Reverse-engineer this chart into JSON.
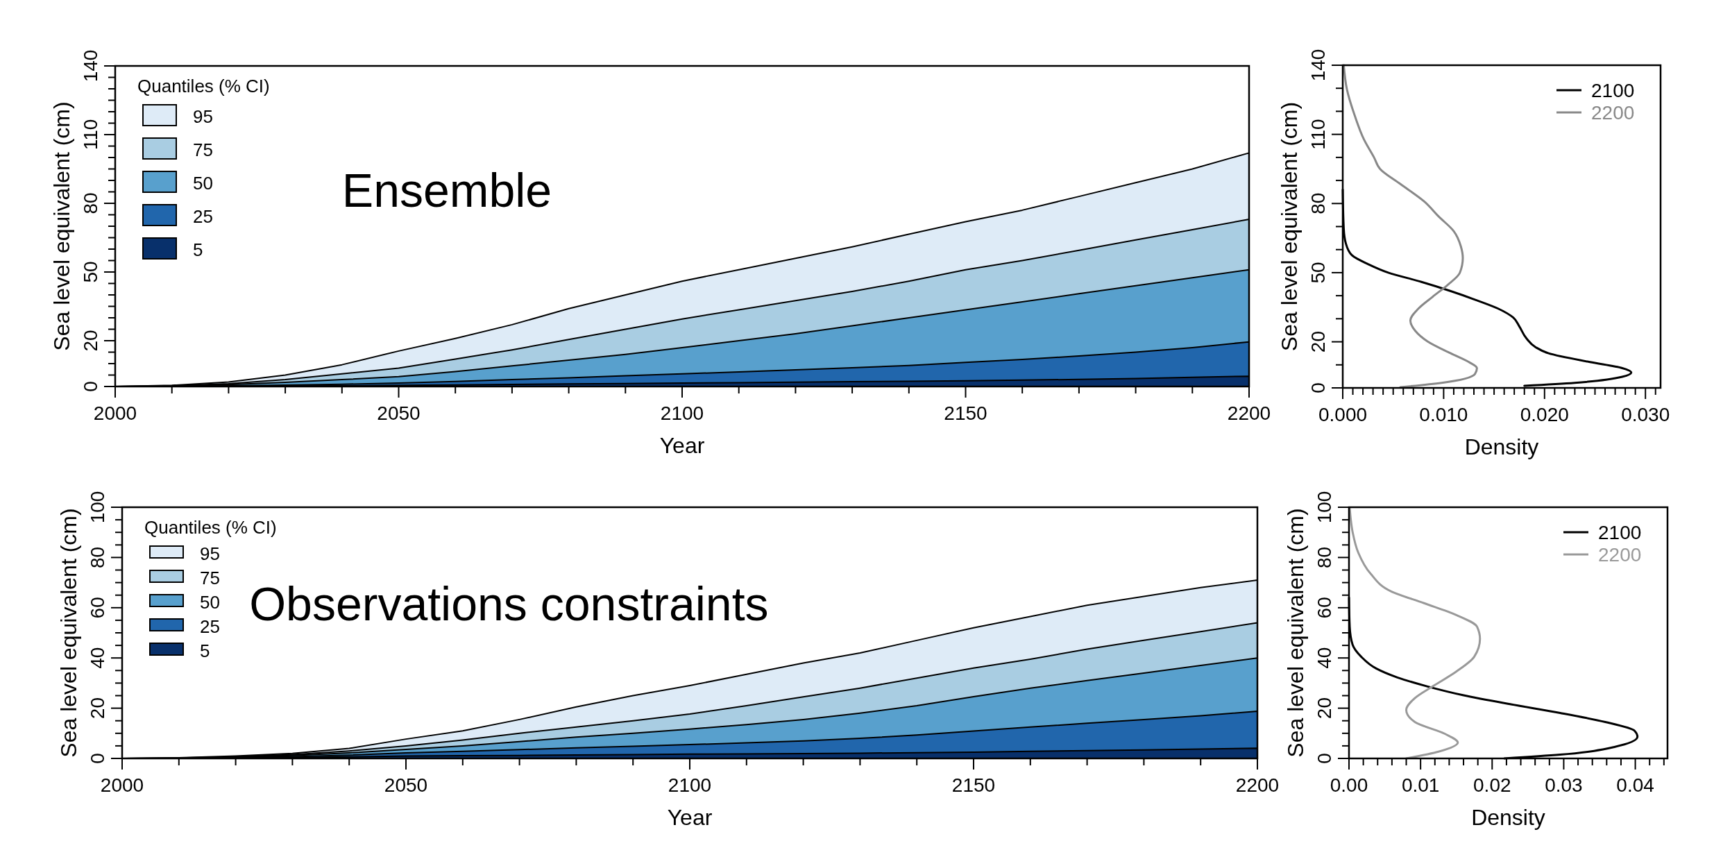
{
  "chart_data": [
    {
      "type": "area",
      "xlabel": "Year",
      "ylabel": "Sea level equivalent (cm)",
      "legend_title": "Quantiles (% CI)",
      "legend": "top left",
      "annotations": [
        "Ensemble"
      ],
      "x": [
        2000,
        2010,
        2020,
        2030,
        2040,
        2050,
        2060,
        2070,
        2080,
        2090,
        2100,
        2110,
        2120,
        2130,
        2140,
        2150,
        2160,
        2170,
        2180,
        2190,
        2200
      ],
      "xlim": [
        2000,
        2200
      ],
      "xticks": [
        2000,
        {
          "value": 2010,
          "label": null
        },
        {
          "value": 2020,
          "label": null
        },
        {
          "value": 2030,
          "label": null
        },
        {
          "value": 2040,
          "label": null
        },
        2050,
        {
          "value": 2060,
          "label": null
        },
        {
          "value": 2070,
          "label": null
        },
        {
          "value": 2080,
          "label": null
        },
        {
          "value": 2090,
          "label": null
        },
        2100,
        {
          "value": 2110,
          "label": null
        },
        {
          "value": 2120,
          "label": null
        },
        {
          "value": 2130,
          "label": null
        },
        {
          "value": 2140,
          "label": null
        },
        2150,
        {
          "value": 2160,
          "label": null
        },
        {
          "value": 2170,
          "label": null
        },
        {
          "value": 2180,
          "label": null
        },
        {
          "value": 2190,
          "label": null
        },
        2200
      ],
      "ylim": [
        0,
        140
      ],
      "yticks": [
        0,
        {
          "value": 5,
          "label": null
        },
        {
          "value": 10,
          "label": null
        },
        {
          "value": 15,
          "label": null
        },
        20,
        {
          "value": 25,
          "label": null
        },
        {
          "value": 30,
          "label": null
        },
        {
          "value": 35,
          "label": null
        },
        {
          "value": 40,
          "label": null
        },
        {
          "value": 45,
          "label": null
        },
        50,
        {
          "value": 55,
          "label": null
        },
        {
          "value": 60,
          "label": null
        },
        {
          "value": 65,
          "label": null
        },
        {
          "value": 70,
          "label": null
        },
        {
          "value": 75,
          "label": null
        },
        80,
        {
          "value": 85,
          "label": null
        },
        {
          "value": 90,
          "label": null
        },
        {
          "value": 95,
          "label": null
        },
        {
          "value": 100,
          "label": null
        },
        {
          "value": 105,
          "label": null
        },
        110,
        {
          "value": 115,
          "label": null
        },
        {
          "value": 120,
          "label": null
        },
        {
          "value": 125,
          "label": null
        },
        {
          "value": 130,
          "label": null
        },
        {
          "value": 135,
          "label": null
        },
        140
      ],
      "series": [
        {
          "name": "95",
          "color": "#deebf7",
          "values": [
            0,
            0.5,
            2,
            5,
            9.5,
            15.5,
            21,
            27,
            34,
            40,
            46,
            51,
            56,
            61,
            66.5,
            72,
            77,
            83,
            89,
            95,
            102
          ]
        },
        {
          "name": "75",
          "color": "#a9cde2",
          "values": [
            0,
            0.3,
            1.2,
            3,
            5.5,
            8,
            12,
            16,
            20.5,
            25,
            29.5,
            33.5,
            37.5,
            41.5,
            46,
            51,
            55,
            59.5,
            64,
            68.5,
            73
          ]
        },
        {
          "name": "50",
          "color": "#58a0cd",
          "values": [
            0,
            0.2,
            0.8,
            1.8,
            3,
            4.3,
            6.5,
            9,
            11.5,
            14,
            17,
            20,
            23,
            26.5,
            30,
            33.5,
            37,
            40.5,
            44,
            47.5,
            51
          ]
        },
        {
          "name": "25",
          "color": "#2166ac",
          "values": [
            0,
            0.1,
            0.3,
            0.6,
            1,
            1.5,
            2.2,
            3,
            3.8,
            4.7,
            5.5,
            6.4,
            7.3,
            8.2,
            9.2,
            10.5,
            11.8,
            13.3,
            15,
            17,
            19.5
          ]
        },
        {
          "name": "5",
          "color": "#08306b",
          "values": [
            0,
            0,
            0.1,
            0.2,
            0.3,
            0.5,
            0.7,
            0.9,
            1.1,
            1.3,
            1.5,
            1.7,
            1.9,
            2.1,
            2.3,
            2.5,
            2.8,
            3.1,
            3.5,
            4,
            4.5
          ]
        }
      ]
    },
    {
      "type": "line",
      "xlabel": "Density",
      "ylabel": "Sea level equivalent (cm)",
      "legend": "top right",
      "xlim": [
        0,
        0.0315
      ],
      "xticks": [
        {
          "value": 0,
          "label": "0.000"
        },
        {
          "value": 0.001,
          "label": null
        },
        {
          "value": 0.002,
          "label": null
        },
        {
          "value": 0.003,
          "label": null
        },
        {
          "value": 0.004,
          "label": null
        },
        {
          "value": 0.005,
          "label": null
        },
        {
          "value": 0.006,
          "label": null
        },
        {
          "value": 0.007,
          "label": null
        },
        {
          "value": 0.008,
          "label": null
        },
        {
          "value": 0.009,
          "label": null
        },
        {
          "value": 0.01,
          "label": "0.010"
        },
        {
          "value": 0.011,
          "label": null
        },
        {
          "value": 0.012,
          "label": null
        },
        {
          "value": 0.013,
          "label": null
        },
        {
          "value": 0.014,
          "label": null
        },
        {
          "value": 0.015,
          "label": null
        },
        {
          "value": 0.016,
          "label": null
        },
        {
          "value": 0.017,
          "label": null
        },
        {
          "value": 0.018,
          "label": null
        },
        {
          "value": 0.019,
          "label": null
        },
        {
          "value": 0.02,
          "label": "0.020"
        },
        {
          "value": 0.021,
          "label": null
        },
        {
          "value": 0.022,
          "label": null
        },
        {
          "value": 0.023,
          "label": null
        },
        {
          "value": 0.024,
          "label": null
        },
        {
          "value": 0.025,
          "label": null
        },
        {
          "value": 0.026,
          "label": null
        },
        {
          "value": 0.027,
          "label": null
        },
        {
          "value": 0.028,
          "label": null
        },
        {
          "value": 0.029,
          "label": null
        },
        {
          "value": 0.03,
          "label": "0.030"
        },
        {
          "value": 0.031,
          "label": null
        }
      ],
      "ylim": [
        0,
        140
      ],
      "yticks": [
        0,
        {
          "value": 10,
          "label": null
        },
        20,
        {
          "value": 30,
          "label": null
        },
        {
          "value": 40,
          "label": null
        },
        50,
        {
          "value": 60,
          "label": null
        },
        {
          "value": 70,
          "label": null
        },
        80,
        {
          "value": 90,
          "label": null
        },
        {
          "value": 100,
          "label": null
        },
        110,
        {
          "value": 120,
          "label": null
        },
        {
          "value": 130,
          "label": null
        },
        140
      ],
      "series": [
        {
          "name": "2100",
          "color": "#000000",
          "x": [
            0.018,
            0.023,
            0.0277,
            0.0286,
            0.0277,
            0.0245,
            0.0204,
            0.0191,
            0.0182,
            0.0175,
            0.0169,
            0.0154,
            0.0131,
            0.0107,
            0.0078,
            0.0045,
            0.0025,
            0.0009,
            0.0003,
            0.0001,
            0
          ],
          "values": [
            0.9,
            2.2,
            4.8,
            6.7,
            8.6,
            11.2,
            15,
            17.7,
            21.5,
            26.7,
            30.5,
            34.4,
            38.3,
            42,
            46,
            50,
            53.7,
            57.6,
            62.8,
            69,
            86
          ]
        },
        {
          "name": "2200",
          "color": "#888888",
          "x": [
            0.0057,
            0.0098,
            0.0131,
            0.0133,
            0.0125,
            0.0107,
            0.0084,
            0.0072,
            0.0067,
            0.0075,
            0.0089,
            0.0104,
            0.0116,
            0.0119,
            0.0117,
            0.011,
            0.0095,
            0.0081,
            0.0057,
            0.0037,
            0.0031,
            0.0021,
            0.0012,
            0.0004,
            0.0001
          ],
          "values": [
            0.3,
            2.2,
            6,
            8.6,
            11.2,
            15,
            20.2,
            24.7,
            29.2,
            34.4,
            39.5,
            44.7,
            49.9,
            56.3,
            61.5,
            68,
            74.4,
            80.8,
            88.5,
            95,
            100,
            107.8,
            118,
            129.8,
            140
          ]
        }
      ]
    },
    {
      "type": "area",
      "xlabel": "Year",
      "ylabel": "Sea level equivalent (cm)",
      "legend_title": "Quantiles (% CI)",
      "legend": "top left",
      "annotations": [
        "Observations constraints"
      ],
      "x": [
        2000,
        2010,
        2020,
        2030,
        2040,
        2050,
        2060,
        2070,
        2080,
        2090,
        2100,
        2110,
        2120,
        2130,
        2140,
        2150,
        2160,
        2170,
        2180,
        2190,
        2200
      ],
      "xlim": [
        2000,
        2200
      ],
      "xticks": [
        2000,
        {
          "value": 2010,
          "label": null
        },
        {
          "value": 2020,
          "label": null
        },
        {
          "value": 2030,
          "label": null
        },
        {
          "value": 2040,
          "label": null
        },
        2050,
        {
          "value": 2060,
          "label": null
        },
        {
          "value": 2070,
          "label": null
        },
        {
          "value": 2080,
          "label": null
        },
        {
          "value": 2090,
          "label": null
        },
        2100,
        {
          "value": 2110,
          "label": null
        },
        {
          "value": 2120,
          "label": null
        },
        {
          "value": 2130,
          "label": null
        },
        {
          "value": 2140,
          "label": null
        },
        2150,
        {
          "value": 2160,
          "label": null
        },
        {
          "value": 2170,
          "label": null
        },
        {
          "value": 2180,
          "label": null
        },
        {
          "value": 2190,
          "label": null
        },
        2200
      ],
      "ylim": [
        0,
        100
      ],
      "yticks": [
        0,
        {
          "value": 5,
          "label": null
        },
        {
          "value": 10,
          "label": null
        },
        {
          "value": 15,
          "label": null
        },
        20,
        {
          "value": 25,
          "label": null
        },
        {
          "value": 30,
          "label": null
        },
        {
          "value": 35,
          "label": null
        },
        40,
        {
          "value": 45,
          "label": null
        },
        {
          "value": 50,
          "label": null
        },
        {
          "value": 55,
          "label": null
        },
        60,
        {
          "value": 65,
          "label": null
        },
        {
          "value": 70,
          "label": null
        },
        {
          "value": 75,
          "label": null
        },
        80,
        {
          "value": 85,
          "label": null
        },
        {
          "value": 90,
          "label": null
        },
        {
          "value": 95,
          "label": null
        },
        100
      ],
      "series": [
        {
          "name": "95",
          "color": "#deebf7",
          "values": [
            0,
            0.3,
            1,
            2,
            4,
            7.7,
            11,
            15.5,
            20.5,
            25,
            29,
            33.5,
            38,
            42,
            47,
            52,
            56.5,
            61,
            64.5,
            68,
            71
          ]
        },
        {
          "name": "75",
          "color": "#a9cde2",
          "values": [
            0,
            0.2,
            0.7,
            1.5,
            3,
            5,
            7.3,
            10,
            12.5,
            15,
            17.7,
            21,
            24.5,
            28,
            32,
            36,
            39.5,
            43.5,
            47,
            50.5,
            54
          ]
        },
        {
          "name": "50",
          "color": "#58a0cd",
          "values": [
            0,
            0.1,
            0.5,
            1.2,
            2.2,
            3.6,
            5,
            6.7,
            8.5,
            10,
            11.7,
            13.5,
            15.5,
            18,
            21,
            24.6,
            28,
            31,
            34,
            37,
            40
          ]
        },
        {
          "name": "25",
          "color": "#2166ac",
          "values": [
            0,
            0.1,
            0.3,
            0.7,
            1.3,
            2.2,
            2.8,
            3.5,
            4.2,
            4.8,
            5.5,
            6.2,
            7,
            8,
            9.3,
            10.9,
            12.5,
            14,
            15.5,
            17,
            18.8
          ]
        },
        {
          "name": "5",
          "color": "#08306b",
          "values": [
            0,
            0,
            0.1,
            0.3,
            0.6,
            1,
            1.1,
            1.2,
            1.4,
            1.5,
            1.7,
            1.8,
            1.9,
            2.1,
            2.3,
            2.5,
            2.8,
            3.1,
            3.4,
            3.7,
            4.1
          ]
        }
      ]
    },
    {
      "type": "line",
      "xlabel": "Density",
      "ylabel": "Sea level equivalent (cm)",
      "legend": "top right",
      "xlim": [
        0,
        0.0445
      ],
      "xticks": [
        {
          "value": 0,
          "label": "0.00"
        },
        {
          "value": 0.002,
          "label": null
        },
        {
          "value": 0.004,
          "label": null
        },
        {
          "value": 0.006,
          "label": null
        },
        {
          "value": 0.008,
          "label": null
        },
        {
          "value": 0.01,
          "label": "0.01"
        },
        {
          "value": 0.012,
          "label": null
        },
        {
          "value": 0.014,
          "label": null
        },
        {
          "value": 0.016,
          "label": null
        },
        {
          "value": 0.018,
          "label": null
        },
        {
          "value": 0.02,
          "label": "0.02"
        },
        {
          "value": 0.022,
          "label": null
        },
        {
          "value": 0.024,
          "label": null
        },
        {
          "value": 0.026,
          "label": null
        },
        {
          "value": 0.028,
          "label": null
        },
        {
          "value": 0.03,
          "label": "0.03"
        },
        {
          "value": 0.032,
          "label": null
        },
        {
          "value": 0.034,
          "label": null
        },
        {
          "value": 0.036,
          "label": null
        },
        {
          "value": 0.038,
          "label": null
        },
        {
          "value": 0.04,
          "label": "0.04"
        },
        {
          "value": 0.042,
          "label": null
        },
        {
          "value": 0.044,
          "label": null
        }
      ],
      "ylim": [
        0,
        100
      ],
      "yticks": [
        0,
        {
          "value": 5,
          "label": null
        },
        {
          "value": 10,
          "label": null
        },
        {
          "value": 15,
          "label": null
        },
        20,
        {
          "value": 25,
          "label": null
        },
        {
          "value": 30,
          "label": null
        },
        {
          "value": 35,
          "label": null
        },
        40,
        {
          "value": 45,
          "label": null
        },
        {
          "value": 50,
          "label": null
        },
        {
          "value": 55,
          "label": null
        },
        60,
        {
          "value": 65,
          "label": null
        },
        {
          "value": 70,
          "label": null
        },
        {
          "value": 75,
          "label": null
        },
        80,
        {
          "value": 85,
          "label": null
        },
        {
          "value": 90,
          "label": null
        },
        {
          "value": 95,
          "label": null
        },
        100
      ],
      "series": [
        {
          "name": "2100",
          "color": "#000000",
          "x": [
            0.0217,
            0.0295,
            0.037,
            0.0403,
            0.0399,
            0.0358,
            0.0295,
            0.0225,
            0.0159,
            0.0109,
            0.0067,
            0.0038,
            0.0017,
            0.0005,
            0.0001,
            0
          ],
          "values": [
            0,
            1.5,
            4.5,
            8.6,
            11,
            14.5,
            18.1,
            21.6,
            25.2,
            28.7,
            32.3,
            35.8,
            40.5,
            45.3,
            52.4,
            64
          ]
        },
        {
          "name": "2200",
          "color": "#999999",
          "x": [
            0.008,
            0.0125,
            0.0152,
            0.0134,
            0.0092,
            0.008,
            0.0092,
            0.0117,
            0.015,
            0.0175,
            0.0183,
            0.0179,
            0.015,
            0.0105,
            0.0059,
            0.003,
            0.0013,
            0.0005,
            0.0001
          ],
          "values": [
            0,
            2.7,
            6.3,
            9.8,
            14.5,
            19.3,
            24,
            28.7,
            34.6,
            40.5,
            47.6,
            52.4,
            57.1,
            61.8,
            66.5,
            73.6,
            81.9,
            90.2,
            99.6
          ]
        }
      ]
    }
  ]
}
